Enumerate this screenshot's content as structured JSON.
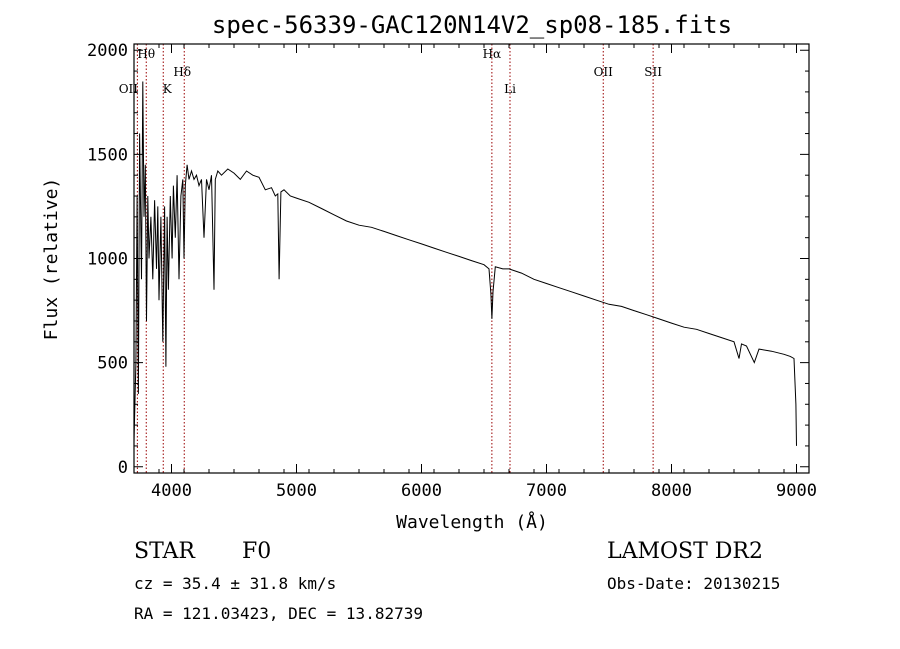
{
  "chart_data": {
    "type": "line",
    "title": "spec-56339-GAC120N14V2_sp08-185.fits",
    "xlabel": "Wavelength (Å)",
    "ylabel": "Flux (relative)",
    "xlim": [
      3700,
      9100
    ],
    "ylim": [
      -30,
      2030
    ],
    "xticks": [
      4000,
      5000,
      6000,
      7000,
      8000,
      9000
    ],
    "yticks": [
      0,
      500,
      1000,
      1500,
      2000
    ],
    "grid": false,
    "line_color": "#000000",
    "marker_color": "#990000",
    "spectral_lines": [
      {
        "name": "Hθ",
        "wavelength": 3798
      },
      {
        "name": "OII",
        "wavelength": 3727
      },
      {
        "name": "K",
        "wavelength": 3934
      },
      {
        "name": "Hδ",
        "wavelength": 4102
      },
      {
        "name": "Hα",
        "wavelength": 6563
      },
      {
        "name": "Li",
        "wavelength": 6708
      },
      {
        "name": "OII",
        "wavelength": 7454
      },
      {
        "name": "SII",
        "wavelength": 7853
      }
    ],
    "series": [
      {
        "x": [
          3700,
          3715,
          3725,
          3735,
          3745,
          3760,
          3770,
          3780,
          3790,
          3800,
          3810,
          3820,
          3835,
          3850,
          3865,
          3880,
          3890,
          3900,
          3915,
          3930,
          3945,
          3955,
          3965,
          3975,
          3990,
          4005,
          4015,
          4030,
          4045,
          4060,
          4075,
          4090,
          4100,
          4110,
          4125,
          4140,
          4160,
          4180,
          4200,
          4220,
          4240,
          4260,
          4280,
          4300,
          4320,
          4340,
          4350,
          4370,
          4400,
          4450,
          4500,
          4550,
          4600,
          4650,
          4700,
          4750,
          4800,
          4830,
          4850,
          4861,
          4875,
          4900,
          4950,
          5000,
          5100,
          5200,
          5300,
          5400,
          5500,
          5600,
          5700,
          5800,
          5900,
          6000,
          6100,
          6200,
          6300,
          6400,
          6500,
          6540,
          6555,
          6563,
          6572,
          6590,
          6650,
          6700,
          6800,
          6900,
          7000,
          7100,
          7200,
          7300,
          7400,
          7500,
          7600,
          7700,
          7800,
          7900,
          8000,
          8100,
          8200,
          8300,
          8400,
          8500,
          8540,
          8560,
          8600,
          8662,
          8700,
          8800,
          8900,
          8950,
          8980,
          8995,
          9000
        ],
        "y": [
          120,
          500,
          1300,
          350,
          1600,
          900,
          1850,
          1200,
          1450,
          700,
          1300,
          1000,
          1200,
          900,
          1280,
          950,
          1250,
          800,
          1200,
          600,
          1250,
          480,
          1200,
          850,
          1300,
          1000,
          1350,
          1100,
          1400,
          900,
          1300,
          1380,
          1000,
          1350,
          1450,
          1380,
          1420,
          1380,
          1400,
          1350,
          1380,
          1100,
          1380,
          1330,
          1400,
          850,
          1380,
          1420,
          1400,
          1430,
          1410,
          1380,
          1420,
          1400,
          1390,
          1330,
          1340,
          1300,
          1310,
          900,
          1320,
          1330,
          1300,
          1290,
          1270,
          1240,
          1210,
          1180,
          1160,
          1150,
          1130,
          1110,
          1090,
          1070,
          1050,
          1030,
          1010,
          990,
          970,
          950,
          830,
          710,
          840,
          960,
          950,
          950,
          930,
          900,
          880,
          860,
          840,
          820,
          800,
          780,
          770,
          750,
          730,
          710,
          690,
          670,
          660,
          640,
          620,
          600,
          520,
          590,
          580,
          500,
          565,
          555,
          540,
          530,
          520,
          300,
          100
        ]
      }
    ]
  },
  "info": {
    "object_class": "STAR",
    "subclass": "F0",
    "cz": "cz = 35.4 ± 31.8 km/s",
    "coords": "RA = 121.03423, DEC =  13.82739",
    "survey": "LAMOST DR2",
    "obs_date": "Obs-Date: 20130215"
  }
}
